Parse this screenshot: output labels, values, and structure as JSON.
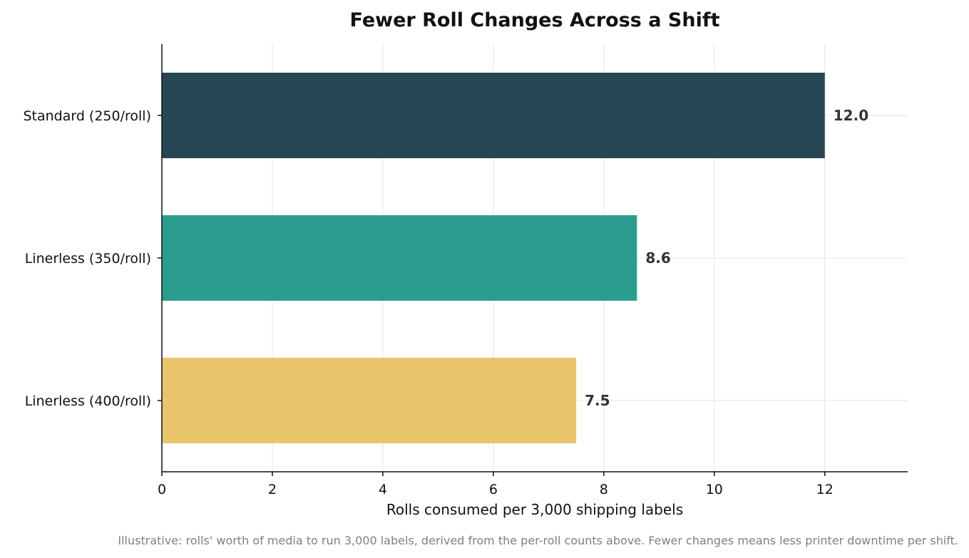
{
  "chart_data": {
    "type": "bar",
    "orientation": "horizontal",
    "title": "Fewer Roll Changes Across a Shift",
    "xlabel": "Rolls consumed per 3,000 shipping labels",
    "ylabel": "",
    "xlim": [
      0,
      13.5
    ],
    "xticks": [
      0,
      2,
      4,
      6,
      8,
      10,
      12
    ],
    "grid": true,
    "categories": [
      "Standard (250/roll)",
      "Linerless (350/roll)",
      "Linerless (400/roll)"
    ],
    "values": [
      12.0,
      8.6,
      7.5
    ],
    "value_labels": [
      "12.0",
      "8.6",
      "7.5"
    ],
    "colors": [
      "#264653",
      "#2a9d8f",
      "#e9c46a"
    ],
    "footnote": "Illustrative: rolls' worth of media to run 3,000 labels, derived from the per-roll counts above. Fewer changes means less printer downtime per shift."
  }
}
